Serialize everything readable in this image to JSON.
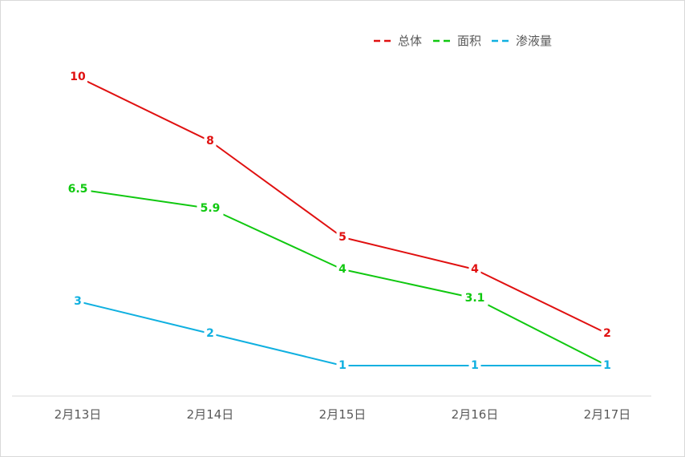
{
  "chart_data": {
    "type": "line",
    "categories": [
      "2月13日",
      "2月14日",
      "2月15日",
      "2月16日",
      "2月17日"
    ],
    "series": [
      {
        "name": "总体",
        "color": "#e01010",
        "values": [
          10,
          8,
          5,
          4,
          2
        ]
      },
      {
        "name": "面积",
        "color": "#10c810",
        "values": [
          6.5,
          5.9,
          4,
          3.1,
          1
        ]
      },
      {
        "name": "渗液量",
        "color": "#10b0e0",
        "values": [
          3,
          2,
          1,
          1,
          1
        ]
      }
    ],
    "title": "",
    "xlabel": "",
    "ylabel": "",
    "ylim": [
      0,
      11
    ],
    "grid": false,
    "legend": "top-right",
    "data_labels": true
  }
}
